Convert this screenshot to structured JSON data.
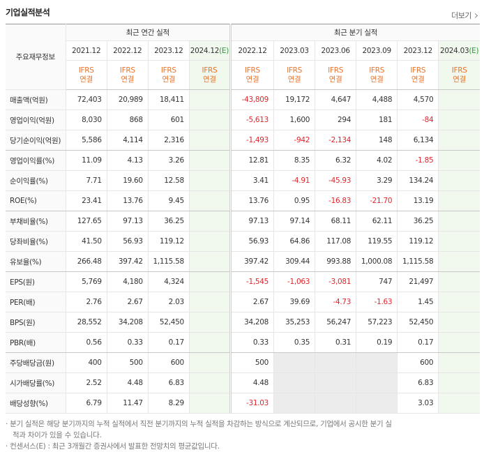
{
  "header": {
    "title": "기업실적분석",
    "more": "더보기"
  },
  "table": {
    "corner": "주요재무정보",
    "groups": [
      "최근 연간 실적",
      "최근 분기 실적"
    ],
    "annual_periods": [
      {
        "label": "2021.12"
      },
      {
        "label": "2022.12"
      },
      {
        "label": "2023.12"
      },
      {
        "label": "2024.12",
        "suffix": "(E)"
      }
    ],
    "quarter_periods": [
      {
        "label": "2022.12"
      },
      {
        "label": "2023.03"
      },
      {
        "label": "2023.06"
      },
      {
        "label": "2023.09"
      },
      {
        "label": "2023.12"
      },
      {
        "label": "2024.03",
        "suffix": "(E)"
      }
    ],
    "basis": [
      "IFRS",
      "연결"
    ],
    "rows": [
      {
        "name": "매출액(억원)",
        "annual": [
          "72,403",
          "20,989",
          "18,411",
          null
        ],
        "quarter": [
          "-43,809",
          "19,172",
          "4,647",
          "4,488",
          "4,570",
          null
        ]
      },
      {
        "name": "영업이익(억원)",
        "annual": [
          "8,030",
          "868",
          "601",
          null
        ],
        "quarter": [
          "-5,613",
          "1,600",
          "294",
          "181",
          "-84",
          null
        ]
      },
      {
        "name": "당기순이익(억원)",
        "annual": [
          "5,586",
          "4,114",
          "2,316",
          null
        ],
        "quarter": [
          "-1,493",
          "-942",
          "-2,134",
          "148",
          "6,134",
          null
        ]
      },
      {
        "name": "영업이익률(%)",
        "annual": [
          "11.09",
          "4.13",
          "3.26",
          null
        ],
        "quarter": [
          "12.81",
          "8.35",
          "6.32",
          "4.02",
          "-1.85",
          null
        ]
      },
      {
        "name": "순이익률(%)",
        "annual": [
          "7.71",
          "19.60",
          "12.58",
          null
        ],
        "quarter": [
          "3.41",
          "-4.91",
          "-45.93",
          "3.29",
          "134.24",
          null
        ]
      },
      {
        "name": "ROE(%)",
        "annual": [
          "23.41",
          "13.76",
          "9.45",
          null
        ],
        "quarter": [
          "13.76",
          "0.95",
          "-16.83",
          "-21.70",
          "13.19",
          null
        ]
      },
      {
        "name": "부채비율(%)",
        "annual": [
          "127.65",
          "97.13",
          "36.25",
          null
        ],
        "quarter": [
          "97.13",
          "97.14",
          "68.11",
          "62.11",
          "36.25",
          null
        ]
      },
      {
        "name": "당좌비율(%)",
        "annual": [
          "41.50",
          "56.93",
          "119.12",
          null
        ],
        "quarter": [
          "56.93",
          "64.86",
          "117.08",
          "119.55",
          "119.12",
          null
        ]
      },
      {
        "name": "유보율(%)",
        "annual": [
          "266.48",
          "397.42",
          "1,115.58",
          null
        ],
        "quarter": [
          "397.42",
          "309.44",
          "993.88",
          "1,000.08",
          "1,115.58",
          null
        ]
      },
      {
        "name": "EPS(원)",
        "annual": [
          "5,769",
          "4,180",
          "4,324",
          null
        ],
        "quarter": [
          "-1,545",
          "-1,063",
          "-3,081",
          "747",
          "21,497",
          null
        ]
      },
      {
        "name": "PER(배)",
        "annual": [
          "2.76",
          "2.67",
          "2.03",
          null
        ],
        "quarter": [
          "2.67",
          "39.69",
          "-4.73",
          "-1.63",
          "1.45",
          null
        ]
      },
      {
        "name": "BPS(원)",
        "annual": [
          "28,552",
          "34,208",
          "52,450",
          null
        ],
        "quarter": [
          "34,208",
          "35,253",
          "56,247",
          "57,223",
          "52,450",
          null
        ]
      },
      {
        "name": "PBR(배)",
        "annual": [
          "0.56",
          "0.33",
          "0.17",
          null
        ],
        "quarter": [
          "0.33",
          "0.35",
          "0.31",
          "0.19",
          "0.17",
          null
        ]
      },
      {
        "name": "주당배당금(원)",
        "annual": [
          "400",
          "500",
          "600",
          null
        ],
        "quarter": [
          "500",
          null,
          null,
          null,
          "600",
          null
        ]
      },
      {
        "name": "시가배당률(%)",
        "annual": [
          "2.52",
          "4.48",
          "6.83",
          null
        ],
        "quarter": [
          "4.48",
          null,
          null,
          null,
          "6.83",
          null
        ]
      },
      {
        "name": "배당성향(%)",
        "annual": [
          "6.79",
          "11.47",
          "8.29",
          null
        ],
        "quarter": [
          "-31.03",
          null,
          null,
          null,
          "3.03",
          null
        ]
      }
    ]
  },
  "notes": [
    "분기 실적은 해당 분기까지의 누적 실적에서 직전 분기까지의 누적 실적을 차감하는 방식으로 계산되므로, 기업에서 공시한 분기 실적과 차이가 있을 수 있습니다.",
    "컨센서스(E) : 최근 3개월간 증권사에서 발표한 전망치의 평균값입니다."
  ]
}
